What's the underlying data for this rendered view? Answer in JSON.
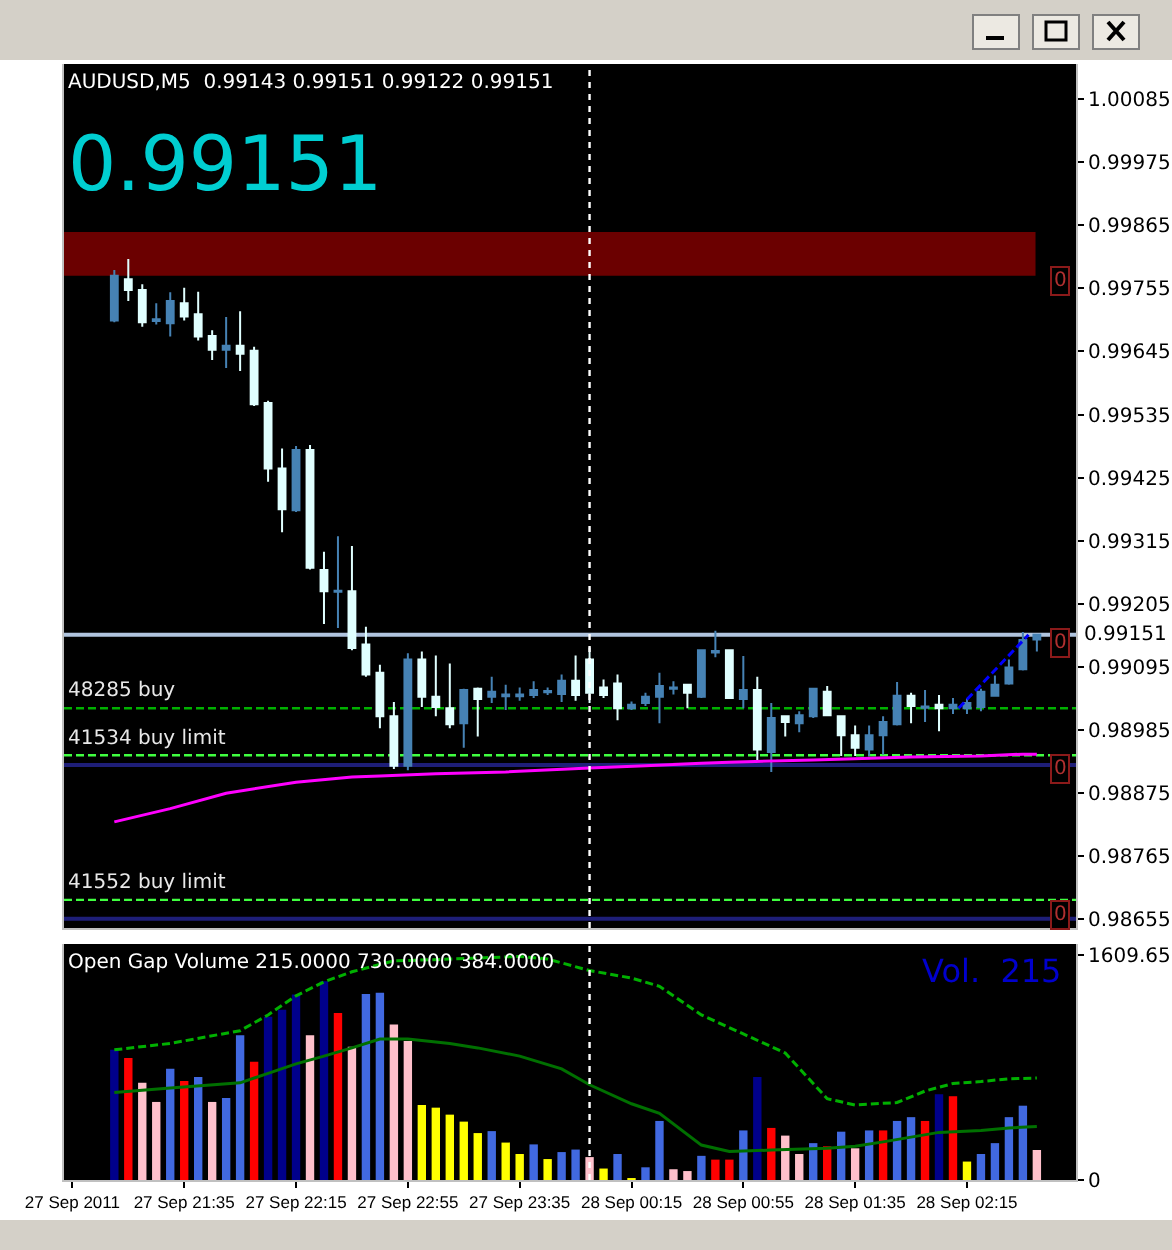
{
  "chart_data": [
    {
      "type": "candlestick",
      "annotations": [
        "AUDUSD,M5  0.99143 0.99151 0.99122 0.99151",
        "0.99151",
        {
          "text": "0",
          "x": "2011-09-28T02:48",
          "y": 0.99767
        },
        {
          "text": "0",
          "x": "2011-09-28T02:48",
          "y": 0.99138
        },
        {
          "text": "0",
          "x": "2011-09-28T02:48",
          "y": 0.98918
        },
        {
          "text": "0",
          "x": "2011-09-28T02:48",
          "y": 0.98662
        }
      ],
      "x": [
        "2011-09-27T21:10",
        "2011-09-27T21:15",
        "2011-09-27T21:20",
        "2011-09-27T21:25",
        "2011-09-27T21:30",
        "2011-09-27T21:35",
        "2011-09-27T21:40",
        "2011-09-27T21:45",
        "2011-09-27T21:50",
        "2011-09-27T21:55",
        "2011-09-27T22:00",
        "2011-09-27T22:05",
        "2011-09-27T22:10",
        "2011-09-27T22:15",
        "2011-09-27T22:20",
        "2011-09-27T22:25",
        "2011-09-27T22:30",
        "2011-09-27T22:35",
        "2011-09-27T22:40",
        "2011-09-27T22:45",
        "2011-09-27T22:50",
        "2011-09-27T22:55",
        "2011-09-27T23:00",
        "2011-09-27T23:05",
        "2011-09-27T23:10",
        "2011-09-27T23:15",
        "2011-09-27T23:20",
        "2011-09-27T23:25",
        "2011-09-27T23:30",
        "2011-09-27T23:35",
        "2011-09-27T23:40",
        "2011-09-27T23:45",
        "2011-09-27T23:50",
        "2011-09-27T23:55",
        "2011-09-28T00:00",
        "2011-09-28T00:05",
        "2011-09-28T00:10",
        "2011-09-28T00:15",
        "2011-09-28T00:20",
        "2011-09-28T00:25",
        "2011-09-28T00:30",
        "2011-09-28T00:35",
        "2011-09-28T00:40",
        "2011-09-28T00:45",
        "2011-09-28T00:50",
        "2011-09-28T00:55",
        "2011-09-28T01:00",
        "2011-09-28T01:05",
        "2011-09-28T01:10",
        "2011-09-28T01:15",
        "2011-09-28T01:20",
        "2011-09-28T01:25",
        "2011-09-28T01:30",
        "2011-09-28T01:35",
        "2011-09-28T01:40",
        "2011-09-28T01:45",
        "2011-09-28T01:50",
        "2011-09-28T01:55",
        "2011-09-28T02:00",
        "2011-09-28T02:05",
        "2011-09-28T02:10",
        "2011-09-28T02:15",
        "2011-09-28T02:20",
        "2011-09-28T02:25",
        "2011-09-28T02:30",
        "2011-09-28T02:35",
        "2011-09-28T02:40"
      ],
      "ohlc": [
        [
          0.99699,
          0.99787,
          0.99696,
          0.99777
        ],
        [
          0.99771,
          0.99806,
          0.99733,
          0.99752
        ],
        [
          0.99752,
          0.99762,
          0.99688,
          0.99696
        ],
        [
          0.99698,
          0.99729,
          0.99692,
          0.99701
        ],
        [
          0.99694,
          0.99748,
          0.99671,
          0.99733
        ],
        [
          0.99729,
          0.99756,
          0.99699,
          0.99706
        ],
        [
          0.9971,
          0.99749,
          0.99664,
          0.99671
        ],
        [
          0.99672,
          0.99682,
          0.9963,
          0.99648
        ],
        [
          0.99648,
          0.99705,
          0.99616,
          0.99655
        ],
        [
          0.99655,
          0.99715,
          0.99611,
          0.99641
        ],
        [
          0.99646,
          0.99653,
          0.9955,
          0.99553
        ],
        [
          0.99555,
          0.99559,
          0.99418,
          0.99441
        ],
        [
          0.99441,
          0.99476,
          0.9933,
          0.9937
        ],
        [
          0.99368,
          0.9948,
          0.99365,
          0.99473
        ],
        [
          0.99473,
          0.99482,
          0.99265,
          0.99268
        ],
        [
          0.99264,
          0.99296,
          0.9917,
          0.99227
        ],
        [
          0.99226,
          0.99323,
          0.99163,
          0.99228
        ],
        [
          0.99227,
          0.99306,
          0.99124,
          0.99128
        ],
        [
          0.99134,
          0.99165,
          0.99078,
          0.99082
        ],
        [
          0.99085,
          0.99099,
          0.98988,
          0.99009
        ],
        [
          0.99009,
          0.99034,
          0.98917,
          0.98923
        ],
        [
          0.98923,
          0.99119,
          0.98915,
          0.99108
        ],
        [
          0.99108,
          0.99122,
          0.99025,
          0.99043
        ],
        [
          0.99043,
          0.99115,
          0.99009,
          0.99025
        ],
        [
          0.99023,
          0.99101,
          0.98988,
          0.98995
        ],
        [
          0.98997,
          0.99057,
          0.98954,
          0.99055
        ],
        [
          0.99057,
          0.99059,
          0.98974,
          0.99039
        ],
        [
          0.99043,
          0.99078,
          0.99032,
          0.99052
        ],
        [
          0.99044,
          0.99064,
          0.9902,
          0.99047
        ],
        [
          0.99044,
          0.99059,
          0.99036,
          0.99047
        ],
        [
          0.99046,
          0.9907,
          0.99041,
          0.99055
        ],
        [
          0.99051,
          0.99059,
          0.99046,
          0.99053
        ],
        [
          0.99048,
          0.99082,
          0.99034,
          0.99071
        ],
        [
          0.99071,
          0.99115,
          0.99036,
          0.99046
        ],
        [
          0.99108,
          0.99129,
          0.99032,
          0.9905
        ],
        [
          0.99059,
          0.99073,
          0.99041,
          0.99046
        ],
        [
          0.99066,
          0.99082,
          0.99002,
          0.99023
        ],
        [
          0.99023,
          0.99035,
          0.9902,
          0.99029
        ],
        [
          0.99032,
          0.9905,
          0.99027,
          0.99043
        ],
        [
          0.99043,
          0.99085,
          0.98997,
          0.99062
        ],
        [
          0.99057,
          0.9907,
          0.99047,
          0.99059
        ],
        [
          0.99064,
          0.99065,
          0.99023,
          0.9905
        ],
        [
          0.99043,
          0.99126,
          0.99041,
          0.99124
        ],
        [
          0.9912,
          0.99158,
          0.99112,
          0.99123
        ],
        [
          0.99124,
          0.99125,
          0.99039,
          0.99041
        ],
        [
          0.99039,
          0.99114,
          0.99023,
          0.99055
        ],
        [
          0.99055,
          0.99078,
          0.98933,
          0.98951
        ],
        [
          0.98947,
          0.99032,
          0.98912,
          0.99006
        ],
        [
          0.99009,
          0.9901,
          0.98974,
          0.98999
        ],
        [
          0.98997,
          0.99018,
          0.98981,
          0.99011
        ],
        [
          0.99009,
          0.99058,
          0.99006,
          0.99057
        ],
        [
          0.99052,
          0.99062,
          0.99009,
          0.99011
        ],
        [
          0.99009,
          0.99011,
          0.9894,
          0.98976
        ],
        [
          0.98976,
          0.98993,
          0.9894,
          0.98954
        ],
        [
          0.98951,
          0.98993,
          0.9894,
          0.98976
        ],
        [
          0.98976,
          0.99009,
          0.98942,
          0.98999
        ],
        [
          0.98995,
          0.99069,
          0.98993,
          0.99045
        ],
        [
          0.99045,
          0.9905,
          0.98997,
          0.99027
        ],
        [
          0.99024,
          0.99055,
          0.98999,
          0.99026
        ],
        [
          0.99029,
          0.99046,
          0.98983,
          0.99023
        ],
        [
          0.99023,
          0.99041,
          0.99013,
          0.99029
        ],
        [
          0.99023,
          0.99039,
          0.99013,
          0.99032
        ],
        [
          0.99025,
          0.99057,
          0.99018,
          0.99052
        ],
        [
          0.99045,
          0.9908,
          0.99043,
          0.99064
        ],
        [
          0.99066,
          0.99108,
          0.99064,
          0.99094
        ],
        [
          0.99091,
          0.99156,
          0.99089,
          0.99142
        ],
        [
          0.99143,
          0.99151,
          0.99122,
          0.99151
        ]
      ],
      "colors": [
        "#4682b4",
        "#e0ffff",
        "#e0ffff",
        "#4682b4",
        "#4682b4",
        "#e0ffff",
        "#e0ffff",
        "#e0ffff",
        "#4682b4",
        "#e0ffff",
        "#e0ffff",
        "#e0ffff",
        "#e0ffff",
        "#4682b4",
        "#e0ffff",
        "#e0ffff",
        "#4682b4",
        "#e0ffff",
        "#e0ffff",
        "#e0ffff",
        "#e0ffff",
        "#4682b4",
        "#e0ffff",
        "#e0ffff",
        "#e0ffff",
        "#4682b4",
        "#e0ffff",
        "#4682b4",
        "#4682b4",
        "#4682b4",
        "#4682b4",
        "#4682b4",
        "#4682b4",
        "#e0ffff",
        "#e0ffff",
        "#e0ffff",
        "#e0ffff",
        "#4682b4",
        "#4682b4",
        "#4682b4",
        "#4682b4",
        "#e0ffff",
        "#4682b4",
        "#4682b4",
        "#e0ffff",
        "#4682b4",
        "#e0ffff",
        "#4682b4",
        "#e0ffff",
        "#4682b4",
        "#4682b4",
        "#e0ffff",
        "#e0ffff",
        "#e0ffff",
        "#4682b4",
        "#4682b4",
        "#4682b4",
        "#e0ffff",
        "#4682b4",
        "#e0ffff",
        "#4682b4",
        "#4682b4",
        "#4682b4",
        "#4682b4",
        "#4682b4",
        "#4682b4",
        "#4682b4"
      ],
      "series": [
        {
          "type": "line",
          "color": "#ff00ff",
          "x": [
            "2011-09-27T21:10",
            "2011-09-27T21:30",
            "2011-09-27T21:50",
            "2011-09-27T22:15",
            "2011-09-27T22:35",
            "2011-09-27T22:45",
            "2011-09-27T23:05",
            "2011-09-27T23:30",
            "2011-09-28T00:00",
            "2011-09-28T00:20",
            "2011-09-28T00:40",
            "2011-09-28T00:50",
            "2011-09-28T01:20",
            "2011-09-28T01:55",
            "2011-09-28T02:20",
            "2011-09-28T02:35",
            "2011-09-28T02:40"
          ],
          "values": [
            0.98825,
            0.98848,
            0.98875,
            0.98894,
            0.98903,
            0.98905,
            0.98909,
            0.98912,
            0.98919,
            0.98923,
            0.98927,
            0.98929,
            0.98933,
            0.98938,
            0.9894,
            0.98943,
            0.98943
          ]
        },
        {
          "type": "line",
          "color": "#0000ff",
          "line_style": "dashed",
          "x": [
            "2011-09-28T02:12",
            "2011-09-28T02:37"
          ],
          "values": [
            0.99023,
            0.99151
          ]
        }
      ],
      "ref_lines": [
        {
          "axis": "y",
          "value": 0.99151,
          "label": "0.99151",
          "color": "#b0c4de",
          "line_style": "solid"
        },
        {
          "axis": "y",
          "value": 0.99023,
          "label": "48285 buy",
          "color": "#00b000",
          "line_style": "dashed"
        },
        {
          "axis": "y",
          "value": 0.98941,
          "label": "41534 buy limit",
          "color": "#40ff40",
          "line_style": "dashed"
        },
        {
          "axis": "y",
          "value": 0.98689,
          "label": "41552 buy limit",
          "color": "#40ff40",
          "line_style": "dashed"
        },
        {
          "axis": "y",
          "value": 0.98924,
          "color": "#1e1e78",
          "line_style": "solid"
        },
        {
          "axis": "y",
          "value": 0.98656,
          "color": "#1e1e78",
          "line_style": "solid"
        },
        {
          "axis": "x",
          "value": "2011-09-28T00:00",
          "color": "#ffffff",
          "line_style": "dotted"
        }
      ],
      "bands": [
        {
          "axis": "y",
          "from": 0.99777,
          "to": 0.99853,
          "color": "#6b0000"
        }
      ],
      "xlim": [
        "2011-09-27T20:52",
        "2011-09-28T02:54"
      ],
      "ylim": [
        0.9864,
        1.00146
      ],
      "yticks": [
        1.00085,
        0.99975,
        0.99865,
        0.99755,
        0.99645,
        0.99535,
        0.99425,
        0.99315,
        0.99205,
        0.99095,
        0.98985,
        0.98875,
        0.98765,
        0.98655
      ],
      "tick_labels": "y"
    },
    {
      "type": "bar",
      "annotations": [
        "Open Gap Volume 215.0000 730.0000 384.0000",
        "Vol.  215"
      ],
      "x": [
        "2011-09-27T21:10",
        "2011-09-27T21:15",
        "2011-09-27T21:20",
        "2011-09-27T21:25",
        "2011-09-27T21:30",
        "2011-09-27T21:35",
        "2011-09-27T21:40",
        "2011-09-27T21:45",
        "2011-09-27T21:50",
        "2011-09-27T21:55",
        "2011-09-27T22:00",
        "2011-09-27T22:05",
        "2011-09-27T22:10",
        "2011-09-27T22:15",
        "2011-09-27T22:20",
        "2011-09-27T22:25",
        "2011-09-27T22:30",
        "2011-09-27T22:35",
        "2011-09-27T22:40",
        "2011-09-27T22:45",
        "2011-09-27T22:50",
        "2011-09-27T22:55",
        "2011-09-27T23:00",
        "2011-09-27T23:05",
        "2011-09-27T23:10",
        "2011-09-27T23:15",
        "2011-09-27T23:20",
        "2011-09-27T23:25",
        "2011-09-27T23:30",
        "2011-09-27T23:35",
        "2011-09-27T23:40",
        "2011-09-27T23:45",
        "2011-09-27T23:50",
        "2011-09-27T23:55",
        "2011-09-28T00:00",
        "2011-09-28T00:05",
        "2011-09-28T00:10",
        "2011-09-28T00:15",
        "2011-09-28T00:20",
        "2011-09-28T00:25",
        "2011-09-28T00:30",
        "2011-09-28T00:35",
        "2011-09-28T00:40",
        "2011-09-28T00:45",
        "2011-09-28T00:50",
        "2011-09-28T00:55",
        "2011-09-28T01:00",
        "2011-09-28T01:05",
        "2011-09-28T01:10",
        "2011-09-28T01:15",
        "2011-09-28T01:20",
        "2011-09-28T01:25",
        "2011-09-28T01:30",
        "2011-09-28T01:35",
        "2011-09-28T01:40",
        "2011-09-28T01:45",
        "2011-09-28T01:50",
        "2011-09-28T01:55",
        "2011-09-28T02:00",
        "2011-09-28T02:05",
        "2011-09-28T02:10",
        "2011-09-28T02:15",
        "2011-09-28T02:20",
        "2011-09-28T02:25",
        "2011-09-28T02:30",
        "2011-09-28T02:35",
        "2011-09-28T02:40"
      ],
      "series": [
        {
          "values": [
            932,
            873,
            696,
            559,
            796,
            709,
            737,
            559,
            587,
            1037,
            846,
            1169,
            1219,
            1328,
            1037,
            1423,
            1196,
            955,
            1332,
            1341,
            1114,
            996,
            537,
            518,
            468,
            418,
            336,
            350,
            268,
            186,
            255,
            150,
            200,
            218,
            164,
            82,
            186,
            14,
            91,
            423,
            77,
            64,
            173,
            146,
            146,
            355,
            737,
            373,
            318,
            186,
            264,
            241,
            346,
            227,
            355,
            355,
            423,
            450,
            423,
            614,
            600,
            132,
            186,
            264,
            450,
            532,
            215
          ],
          "colors": [
            "#00008b",
            "#ff0000",
            "#ffc0cb",
            "#ffc0cb",
            "#4169e1",
            "#ff0000",
            "#4169e1",
            "#ffc0cb",
            "#4169e1",
            "#4169e1",
            "#ff0000",
            "#00008b",
            "#00008b",
            "#00008b",
            "#ffc0cb",
            "#00008b",
            "#ff0000",
            "#ffc0cb",
            "#4169e1",
            "#4169e1",
            "#ffc0cb",
            "#ffc0cb",
            "#ffff00",
            "#ffff00",
            "#ffff00",
            "#ffff00",
            "#ffff00",
            "#4169e1",
            "#ffff00",
            "#ffff00",
            "#4169e1",
            "#ffff00",
            "#4169e1",
            "#4169e1",
            "#ffc0cb",
            "#ffff00",
            "#4169e1",
            "#ffff00",
            "#4169e1",
            "#4169e1",
            "#ffc0cb",
            "#ffc0cb",
            "#4169e1",
            "#ff0000",
            "#ff0000",
            "#4169e1",
            "#00008b",
            "#ff0000",
            "#ffc0cb",
            "#ffc0cb",
            "#4169e1",
            "#ff0000",
            "#4169e1",
            "#ffc0cb",
            "#4169e1",
            "#ff0000",
            "#4169e1",
            "#4169e1",
            "#ff0000",
            "#00008b",
            "#ff0000",
            "#ffff00",
            "#4169e1",
            "#4169e1",
            "#4169e1",
            "#4169e1",
            "#ffc0cb"
          ]
        },
        {
          "type": "line",
          "color": "#00b000",
          "line_style": "dashed",
          "x": [
            "2011-09-27T21:10",
            "2011-09-27T21:30",
            "2011-09-27T21:55",
            "2011-09-27T22:05",
            "2011-09-27T22:15",
            "2011-09-27T22:25",
            "2011-09-27T22:35",
            "2011-09-27T22:50",
            "2011-09-27T23:10",
            "2011-09-27T23:35",
            "2011-09-27T23:45",
            "2011-09-28T00:00",
            "2011-09-28T00:15",
            "2011-09-28T00:25",
            "2011-09-28T00:40",
            "2011-09-28T00:55",
            "2011-09-28T01:10",
            "2011-09-28T01:25",
            "2011-09-28T01:35",
            "2011-09-28T01:50",
            "2011-09-28T02:00",
            "2011-09-28T02:10",
            "2011-09-28T02:20",
            "2011-09-28T02:30",
            "2011-09-28T02:40"
          ],
          "values": [
            932,
            978,
            1069,
            1182,
            1319,
            1419,
            1491,
            1569,
            1582,
            1601,
            1582,
            1500,
            1446,
            1387,
            1182,
            1046,
            909,
            582,
            537,
            555,
            637,
            691,
            705,
            725,
            730
          ]
        },
        {
          "type": "line",
          "color": "#007000",
          "line_style": "solid",
          "x": [
            "2011-09-27T21:10",
            "2011-09-27T21:30",
            "2011-09-27T21:55",
            "2011-09-27T22:05",
            "2011-09-27T22:15",
            "2011-09-27T22:25",
            "2011-09-27T22:35",
            "2011-09-27T22:45",
            "2011-09-27T22:55",
            "2011-09-27T23:10",
            "2011-09-27T23:20",
            "2011-09-27T23:35",
            "2011-09-27T23:50",
            "2011-09-28T00:00",
            "2011-09-28T00:15",
            "2011-09-28T00:25",
            "2011-09-28T00:40",
            "2011-09-28T00:50",
            "2011-09-28T01:05",
            "2011-09-28T01:25",
            "2011-09-28T01:35",
            "2011-09-28T01:45",
            "2011-09-28T02:05",
            "2011-09-28T02:20",
            "2011-09-28T02:30",
            "2011-09-28T02:40"
          ],
          "values": [
            627,
            659,
            696,
            764,
            832,
            887,
            946,
            1009,
            1009,
            978,
            946,
            887,
            796,
            682,
            546,
            477,
            250,
            205,
            214,
            227,
            241,
            273,
            341,
            355,
            373,
            384
          ]
        }
      ],
      "ref_lines": [
        {
          "axis": "x",
          "value": "2011-09-28T00:00",
          "color": "#ffffff",
          "line_style": "dotted"
        }
      ],
      "xlim": [
        "2011-09-27T20:52",
        "2011-09-28T02:54"
      ],
      "xticks": [
        {
          "value": "2011-09-27T20:55",
          "label": "27 Sep 2011"
        },
        {
          "value": "2011-09-27T21:35",
          "label": "27 Sep 21:35"
        },
        {
          "value": "2011-09-27T22:15",
          "label": "27 Sep 22:15"
        },
        {
          "value": "2011-09-27T22:55",
          "label": "27 Sep 22:55"
        },
        {
          "value": "2011-09-27T23:35",
          "label": "27 Sep 23:35"
        },
        {
          "value": "2011-09-28T00:15",
          "label": "28 Sep 00:15"
        },
        {
          "value": "2011-09-28T00:55",
          "label": "28 Sep 00:55"
        },
        {
          "value": "2011-09-28T01:35",
          "label": "28 Sep 01:35"
        },
        {
          "value": "2011-09-28T02:15",
          "label": "28 Sep 02:15"
        }
      ],
      "ylim": [
        0,
        1690
      ],
      "yticks": [
        0,
        1609.65
      ]
    }
  ]
}
